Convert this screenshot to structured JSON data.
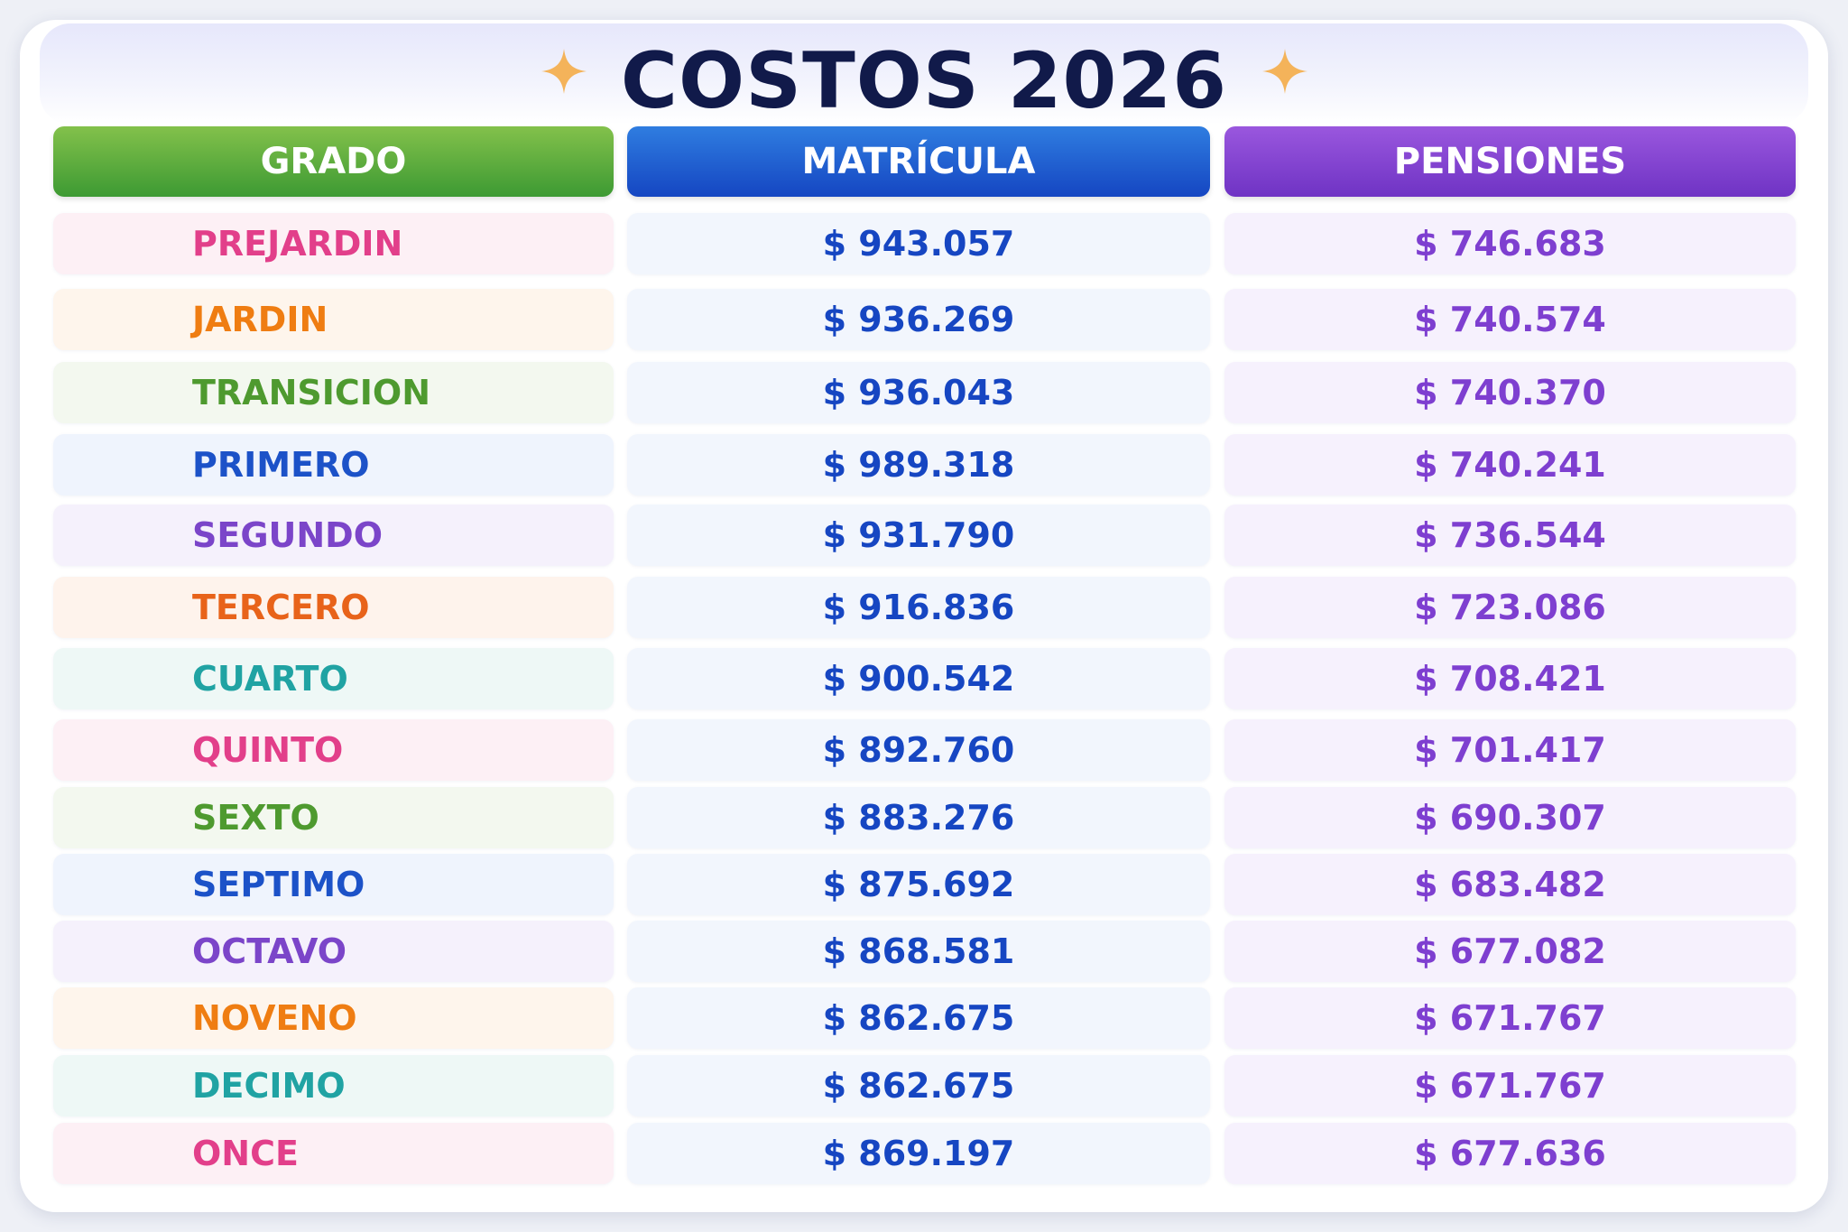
{
  "title": "COSTOS 2026",
  "icons": {
    "sparkle": "sparkle-icon",
    "sparkle_color": "#f4b35a"
  },
  "colors": {
    "title": "#111a4a",
    "header_grado": "#4aa237",
    "header_matricula": "#1d5fd6",
    "header_pensiones": "#7f42d2",
    "matricula_text": "#1646c2",
    "pensiones_text": "#7e3fd0"
  },
  "headers": {
    "grado": "GRADO",
    "matricula": "MATRÍCULA",
    "pensiones": "PENSIONES"
  },
  "rows": [
    {
      "grado": "PREJARDIN",
      "matricula": "$ 943.057",
      "pensiones": "$ 746.683",
      "color": "#e23f8a",
      "bg": "#fdf0f5"
    },
    {
      "grado": "JARDIN",
      "matricula": "$ 936.269",
      "pensiones": "$ 740.574",
      "color": "#ef7d12",
      "bg": "#fef5ec"
    },
    {
      "grado": "TRANSICION",
      "matricula": "$ 936.043",
      "pensiones": "$ 740.370",
      "color": "#4e9a2f",
      "bg": "#f3f8ef"
    },
    {
      "grado": "PRIMERO",
      "matricula": "$ 989.318",
      "pensiones": "$ 740.241",
      "color": "#1c52c8",
      "bg": "#eff4fd"
    },
    {
      "grado": "SEGUNDO",
      "matricula": "$ 931.790",
      "pensiones": "$ 736.544",
      "color": "#7b45c9",
      "bg": "#f5f1fc"
    },
    {
      "grado": "TERCERO",
      "matricula": "$ 916.836",
      "pensiones": "$ 723.086",
      "color": "#e8631a",
      "bg": "#fef3ec"
    },
    {
      "grado": "CUARTO",
      "matricula": "$ 900.542",
      "pensiones": "$ 708.421",
      "color": "#20a3a3",
      "bg": "#eef8f6"
    },
    {
      "grado": "QUINTO",
      "matricula": "$ 892.760",
      "pensiones": "$ 701.417",
      "color": "#e23f8a",
      "bg": "#fdf0f5"
    },
    {
      "grado": "SEXTO",
      "matricula": "$ 883.276",
      "pensiones": "$ 690.307",
      "color": "#4e9a2f",
      "bg": "#f3f8ef"
    },
    {
      "grado": "SEPTIMO",
      "matricula": "$ 875.692",
      "pensiones": "$ 683.482",
      "color": "#1c52c8",
      "bg": "#eff4fd"
    },
    {
      "grado": "OCTAVO",
      "matricula": "$ 868.581",
      "pensiones": "$ 677.082",
      "color": "#7b45c9",
      "bg": "#f5f1fc"
    },
    {
      "grado": "NOVENO",
      "matricula": "$ 862.675",
      "pensiones": "$ 671.767",
      "color": "#ef7d12",
      "bg": "#fef5ec"
    },
    {
      "grado": "DECIMO",
      "matricula": "$ 862.675",
      "pensiones": "$ 671.767",
      "color": "#20a3a3",
      "bg": "#eef8f6"
    },
    {
      "grado": "ONCE",
      "matricula": "$ 869.197",
      "pensiones": "$ 677.636",
      "color": "#e23f8a",
      "bg": "#fdf0f5"
    }
  ]
}
